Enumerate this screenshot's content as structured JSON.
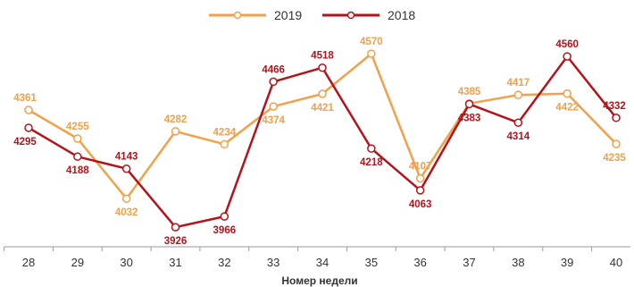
{
  "chart_data": {
    "type": "line",
    "xlabel": "Номер недели",
    "ylabel": "",
    "categories": [
      "28",
      "29",
      "30",
      "31",
      "32",
      "33",
      "34",
      "35",
      "36",
      "37",
      "38",
      "39",
      "40"
    ],
    "series": [
      {
        "name": "2019",
        "color": "#f2a04a",
        "values": [
          4361,
          4255,
          4032,
          4282,
          4234,
          4374,
          4421,
          4570,
          4107,
          4385,
          4417,
          4422,
          4235
        ]
      },
      {
        "name": "2018",
        "color": "#b3141c",
        "values": [
          4295,
          4188,
          4143,
          3926,
          3966,
          4466,
          4518,
          4218,
          4063,
          4383,
          4314,
          4560,
          4332
        ]
      }
    ],
    "ylim": [
      3880,
      4620
    ],
    "grid": false,
    "legend_position": "top"
  }
}
